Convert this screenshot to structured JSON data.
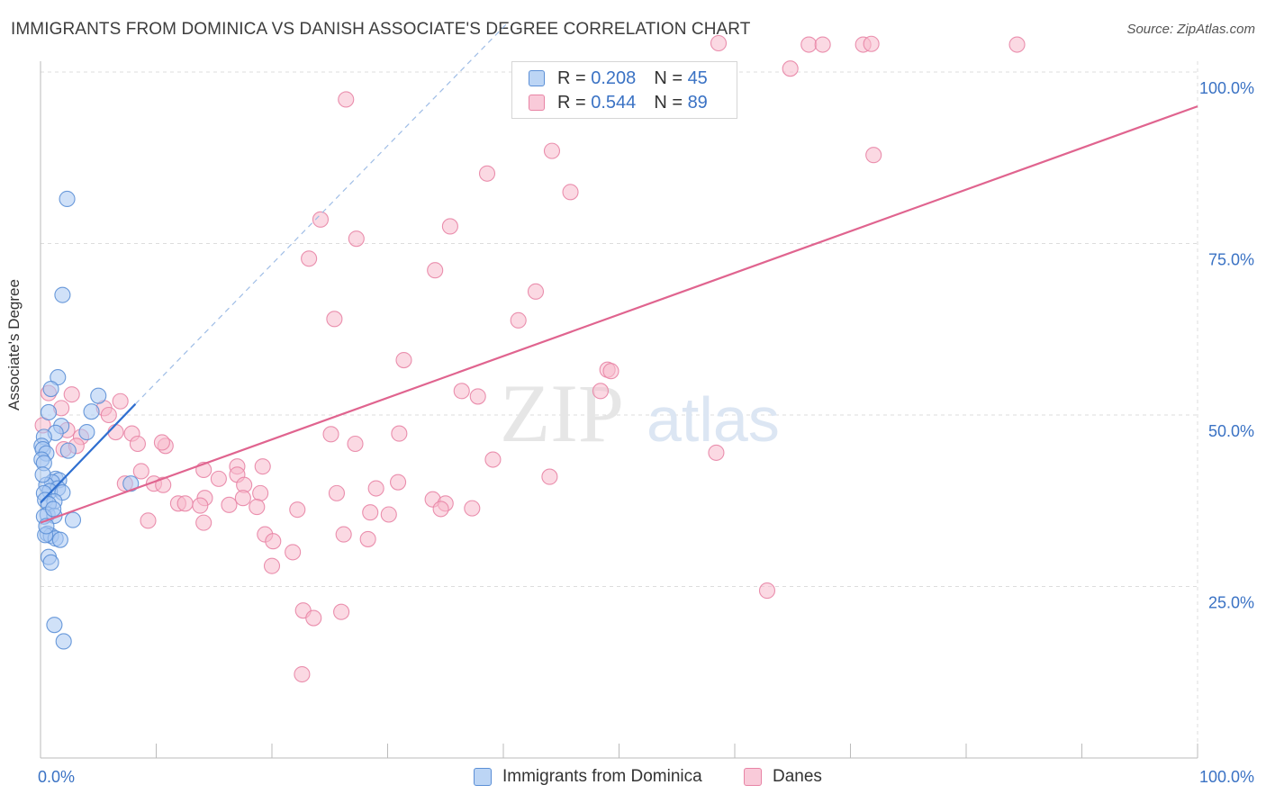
{
  "title": "IMMIGRANTS FROM DOMINICA VS DANISH ASSOCIATE'S DEGREE CORRELATION CHART",
  "source": "Source: ZipAtlas.com",
  "watermark": {
    "zip": "ZIP",
    "atlas": "atlas"
  },
  "legend": {
    "series1": {
      "r_label": "R =",
      "r_value": "0.208",
      "n_label": "N =",
      "n_value": "45"
    },
    "series2": {
      "r_label": "R =",
      "r_value": "0.544",
      "n_label": "N =",
      "n_value": "89"
    }
  },
  "colors": {
    "blue_fill": "#a9c9f2",
    "blue_stroke": "#5b8fd6",
    "blue_line": "#2f6fd0",
    "pink_fill": "#f7b9cc",
    "pink_stroke": "#e884a5",
    "pink_line": "#e0648f",
    "grid": "#dddddd",
    "tick_label": "#3a72c4"
  },
  "chart_data": {
    "type": "scatter",
    "title": "IMMIGRANTS FROM DOMINICA VS DANISH ASSOCIATE'S DEGREE CORRELATION CHART",
    "xlabel": "",
    "ylabel": "Associate's Degree",
    "xlim": [
      0,
      100
    ],
    "ylim": [
      0,
      102
    ],
    "x_tick_labels": {
      "left": "0.0%",
      "right": "100.0%"
    },
    "y_ticks": [
      {
        "value": 25,
        "label": "25.0%"
      },
      {
        "value": 50,
        "label": "50.0%"
      },
      {
        "value": 75,
        "label": "75.0%"
      },
      {
        "value": 100,
        "label": "100.0%"
      }
    ],
    "series": [
      {
        "name": "Immigrants from Dominica",
        "r": 0.208,
        "n": 45,
        "trend": {
          "x0": 0,
          "y0": 37.2,
          "x1": 8.2,
          "y1": 51.6
        },
        "trend_ext": {
          "x0": 8.2,
          "y0": 51.6,
          "x1": 40.5,
          "y1": 107.4
        },
        "points": [
          [
            2.3,
            81.5
          ],
          [
            1.9,
            67.5
          ],
          [
            1.5,
            55.5
          ],
          [
            0.9,
            53.8
          ],
          [
            5.0,
            52.8
          ],
          [
            0.7,
            50.4
          ],
          [
            4.4,
            50.5
          ],
          [
            1.8,
            48.4
          ],
          [
            1.3,
            47.4
          ],
          [
            4.0,
            47.5
          ],
          [
            0.3,
            46.8
          ],
          [
            0.1,
            45.5
          ],
          [
            0.2,
            45.0
          ],
          [
            0.5,
            44.4
          ],
          [
            2.4,
            44.8
          ],
          [
            0.1,
            43.5
          ],
          [
            0.3,
            43.0
          ],
          [
            1.3,
            40.7
          ],
          [
            1.6,
            40.5
          ],
          [
            1.0,
            40.2
          ],
          [
            0.5,
            39.8
          ],
          [
            7.8,
            40.0
          ],
          [
            1.5,
            39.3
          ],
          [
            0.8,
            38.9
          ],
          [
            0.3,
            38.6
          ],
          [
            1.9,
            38.7
          ],
          [
            0.4,
            37.6
          ],
          [
            1.2,
            37.4
          ],
          [
            0.7,
            37.0
          ],
          [
            0.6,
            35.5
          ],
          [
            1.2,
            35.3
          ],
          [
            0.3,
            35.2
          ],
          [
            2.8,
            34.7
          ],
          [
            0.6,
            32.7
          ],
          [
            0.9,
            32.4
          ],
          [
            1.3,
            32.0
          ],
          [
            1.7,
            31.8
          ],
          [
            0.4,
            32.5
          ],
          [
            0.7,
            29.3
          ],
          [
            0.9,
            28.5
          ],
          [
            1.2,
            19.4
          ],
          [
            2.0,
            17.0
          ],
          [
            0.2,
            41.3
          ],
          [
            1.1,
            36.3
          ],
          [
            0.5,
            33.8
          ]
        ]
      },
      {
        "name": "Danes",
        "r": 0.544,
        "n": 89,
        "trend": {
          "x0": 0,
          "y0": 34.3,
          "x1": 100,
          "y1": 95.0
        },
        "points": [
          [
            66.4,
            104.0
          ],
          [
            67.6,
            104.0
          ],
          [
            71.1,
            104.0
          ],
          [
            58.6,
            104.2
          ],
          [
            71.8,
            104.1
          ],
          [
            84.4,
            104.0
          ],
          [
            64.8,
            100.5
          ],
          [
            26.4,
            96.0
          ],
          [
            44.2,
            88.5
          ],
          [
            72.0,
            87.9
          ],
          [
            38.6,
            85.2
          ],
          [
            45.8,
            82.5
          ],
          [
            24.2,
            78.5
          ],
          [
            35.4,
            77.5
          ],
          [
            27.3,
            75.7
          ],
          [
            23.2,
            72.8
          ],
          [
            34.1,
            71.1
          ],
          [
            42.8,
            68.0
          ],
          [
            25.4,
            64.0
          ],
          [
            41.3,
            63.8
          ],
          [
            31.4,
            58.0
          ],
          [
            49.0,
            56.6
          ],
          [
            36.4,
            53.5
          ],
          [
            37.8,
            52.7
          ],
          [
            48.4,
            53.5
          ],
          [
            0.7,
            53.2
          ],
          [
            2.7,
            53.0
          ],
          [
            6.9,
            52.0
          ],
          [
            5.5,
            51.0
          ],
          [
            1.8,
            51.0
          ],
          [
            5.9,
            50.0
          ],
          [
            0.2,
            48.5
          ],
          [
            2.3,
            47.8
          ],
          [
            6.5,
            47.5
          ],
          [
            7.9,
            47.3
          ],
          [
            31.0,
            47.3
          ],
          [
            25.1,
            47.2
          ],
          [
            3.5,
            46.8
          ],
          [
            8.4,
            45.8
          ],
          [
            10.8,
            45.5
          ],
          [
            10.5,
            46.0
          ],
          [
            27.2,
            45.8
          ],
          [
            58.4,
            44.5
          ],
          [
            2.0,
            45.0
          ],
          [
            3.1,
            45.5
          ],
          [
            39.1,
            43.5
          ],
          [
            17.0,
            42.5
          ],
          [
            19.2,
            42.5
          ],
          [
            17.0,
            41.3
          ],
          [
            14.1,
            42.0
          ],
          [
            8.7,
            41.8
          ],
          [
            15.4,
            40.7
          ],
          [
            30.9,
            40.2
          ],
          [
            44.0,
            41.0
          ],
          [
            9.8,
            40.0
          ],
          [
            7.3,
            40.0
          ],
          [
            10.6,
            39.8
          ],
          [
            17.6,
            39.8
          ],
          [
            25.6,
            38.6
          ],
          [
            29.0,
            39.3
          ],
          [
            19.0,
            38.6
          ],
          [
            14.2,
            37.9
          ],
          [
            17.5,
            37.9
          ],
          [
            33.9,
            37.7
          ],
          [
            35.0,
            37.1
          ],
          [
            11.9,
            37.1
          ],
          [
            12.5,
            37.1
          ],
          [
            13.8,
            36.8
          ],
          [
            16.3,
            36.9
          ],
          [
            18.7,
            36.6
          ],
          [
            34.6,
            36.3
          ],
          [
            37.3,
            36.4
          ],
          [
            22.2,
            36.2
          ],
          [
            28.5,
            35.8
          ],
          [
            30.1,
            35.5
          ],
          [
            9.3,
            34.6
          ],
          [
            14.1,
            34.3
          ],
          [
            26.2,
            32.6
          ],
          [
            28.3,
            31.9
          ],
          [
            19.4,
            32.6
          ],
          [
            20.1,
            31.6
          ],
          [
            21.8,
            30.0
          ],
          [
            20.0,
            28.0
          ],
          [
            62.8,
            24.4
          ],
          [
            22.7,
            21.5
          ],
          [
            26.0,
            21.3
          ],
          [
            23.6,
            20.4
          ],
          [
            22.6,
            12.2
          ],
          [
            49.3,
            56.4
          ]
        ]
      }
    ]
  }
}
